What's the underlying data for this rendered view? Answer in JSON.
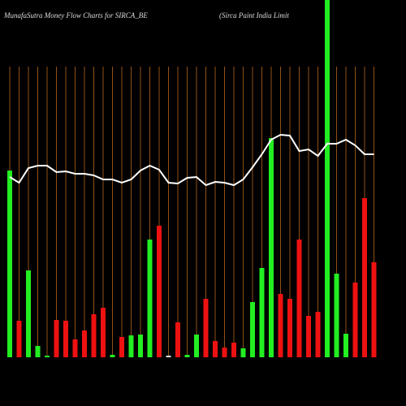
{
  "chart_data": {
    "type": "bar-line",
    "title": "MunafaSutra  Money  Flow  Charts  for  SIRCA_BE",
    "subtitle": "(Sirca  Paint  India  Limit",
    "ylim": [
      0,
      440
    ],
    "guide_color": "#b5651d",
    "bars": {
      "values": [
        230,
        45,
        107,
        14,
        2,
        46,
        45,
        22,
        33,
        53,
        61,
        3,
        25,
        27,
        28,
        145,
        162,
        2,
        43,
        3,
        28,
        72,
        20,
        12,
        18,
        11,
        68,
        110,
        270,
        78,
        72,
        145,
        51,
        56,
        460,
        103,
        29,
        92,
        196,
        117
      ],
      "colors": [
        "#22ee22",
        "#ee1111",
        "#22ee22",
        "#22ee22",
        "#22ee22",
        "#ee1111",
        "#ee1111",
        "#ee1111",
        "#ee1111",
        "#ee1111",
        "#ee1111",
        "#22ee22",
        "#ee1111",
        "#22ee22",
        "#22ee22",
        "#22ee22",
        "#ee1111",
        "#dddddd",
        "#ee1111",
        "#22ee22",
        "#22ee22",
        "#ee1111",
        "#ee1111",
        "#ee1111",
        "#ee1111",
        "#22ee22",
        "#22ee22",
        "#22ee22",
        "#22ee22",
        "#ee1111",
        "#ee1111",
        "#ee1111",
        "#ee1111",
        "#ee1111",
        "#22ee22",
        "#22ee22",
        "#22ee22",
        "#ee1111",
        "#ee1111",
        "#ee1111"
      ]
    },
    "line": {
      "color": "#ffffff",
      "values": [
        222,
        215,
        233,
        236,
        236,
        228,
        229,
        226,
        226,
        224,
        219,
        219,
        215,
        219,
        230,
        236,
        231,
        215,
        214,
        221,
        222,
        212,
        216,
        215,
        212,
        219,
        234,
        250,
        268,
        274,
        273,
        254,
        256,
        248,
        263,
        263,
        268,
        261,
        250,
        250
      ]
    }
  }
}
